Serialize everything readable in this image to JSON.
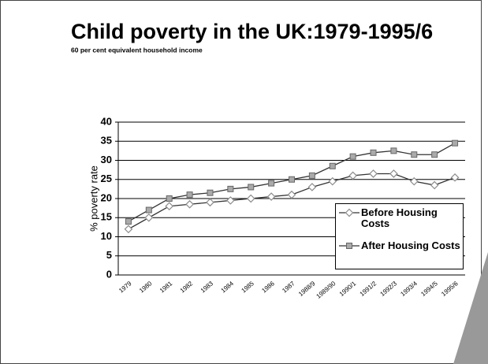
{
  "chart_data": {
    "type": "line",
    "title": "Child poverty in the UK:1979-1995/6",
    "subtitle": "60 per cent equivalent household income",
    "y_label": "% poverty rate",
    "categories": [
      "1979",
      "1980",
      "1981",
      "1982",
      "1983",
      "1984",
      "1985",
      "1986",
      "1987",
      "1988/9",
      "1989/90",
      "1990/1",
      "1991/2",
      "1992/3",
      "1993/4",
      "1994/5",
      "1995/6"
    ],
    "series": [
      {
        "name": "Before Housing Costs",
        "color": "#8c8c8c",
        "marker": "diamond",
        "values": [
          12,
          15,
          18,
          18.5,
          19,
          19.5,
          20,
          20.5,
          21,
          23,
          24.5,
          26,
          26.5,
          26.5,
          24.5,
          23.5,
          25.5
        ]
      },
      {
        "name": "After Housing Costs",
        "color": "#8c8c8c",
        "marker": "square",
        "values": [
          14,
          17,
          20,
          21,
          21.5,
          22.5,
          23,
          24,
          25,
          26,
          28.5,
          31,
          32,
          32.5,
          31.5,
          31.5,
          34.5
        ]
      }
    ],
    "ylim": [
      0,
      40
    ],
    "yticks": [
      0,
      5,
      10,
      15,
      20,
      25,
      30,
      35,
      40
    ],
    "grid": true,
    "legend": "lower right"
  }
}
